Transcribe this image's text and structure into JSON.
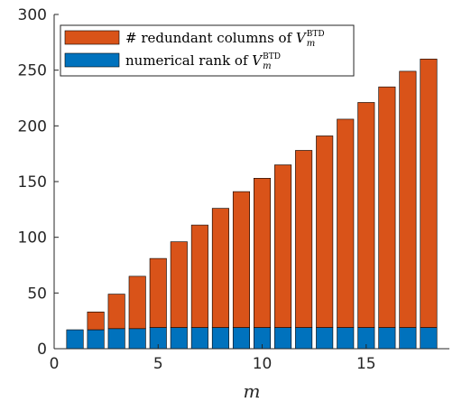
{
  "chart_data": {
    "type": "bar",
    "stacked": true,
    "x": [
      1,
      2,
      3,
      4,
      5,
      6,
      7,
      8,
      9,
      10,
      11,
      12,
      13,
      14,
      15,
      16,
      17,
      18
    ],
    "series": [
      {
        "name": "numerical rank of V_m^BTD",
        "legend_prefix": "numerical rank of ",
        "color": "#0072BD",
        "values": [
          17,
          17,
          18,
          18,
          19,
          19,
          19,
          19,
          19,
          19,
          19,
          19,
          19,
          19,
          19,
          19,
          19,
          19
        ]
      },
      {
        "name": "# redundant columns of V_m^BTD",
        "legend_prefix": "# redundant columns of ",
        "color": "#D95319",
        "values": [
          0,
          16,
          31,
          47,
          62,
          77,
          92,
          107,
          122,
          134,
          146,
          159,
          172,
          187,
          202,
          216,
          230,
          241
        ]
      }
    ],
    "legend_var": "V",
    "legend_sub": "m",
    "legend_sup": "BTD",
    "xlim": [
      0,
      19
    ],
    "ylim": [
      0,
      300
    ],
    "xticks": [
      0,
      5,
      10,
      15
    ],
    "yticks": [
      0,
      50,
      100,
      150,
      200,
      250,
      300
    ],
    "xlabel": "m",
    "ylabel": "",
    "legend_position": "top-left",
    "grid": false
  }
}
